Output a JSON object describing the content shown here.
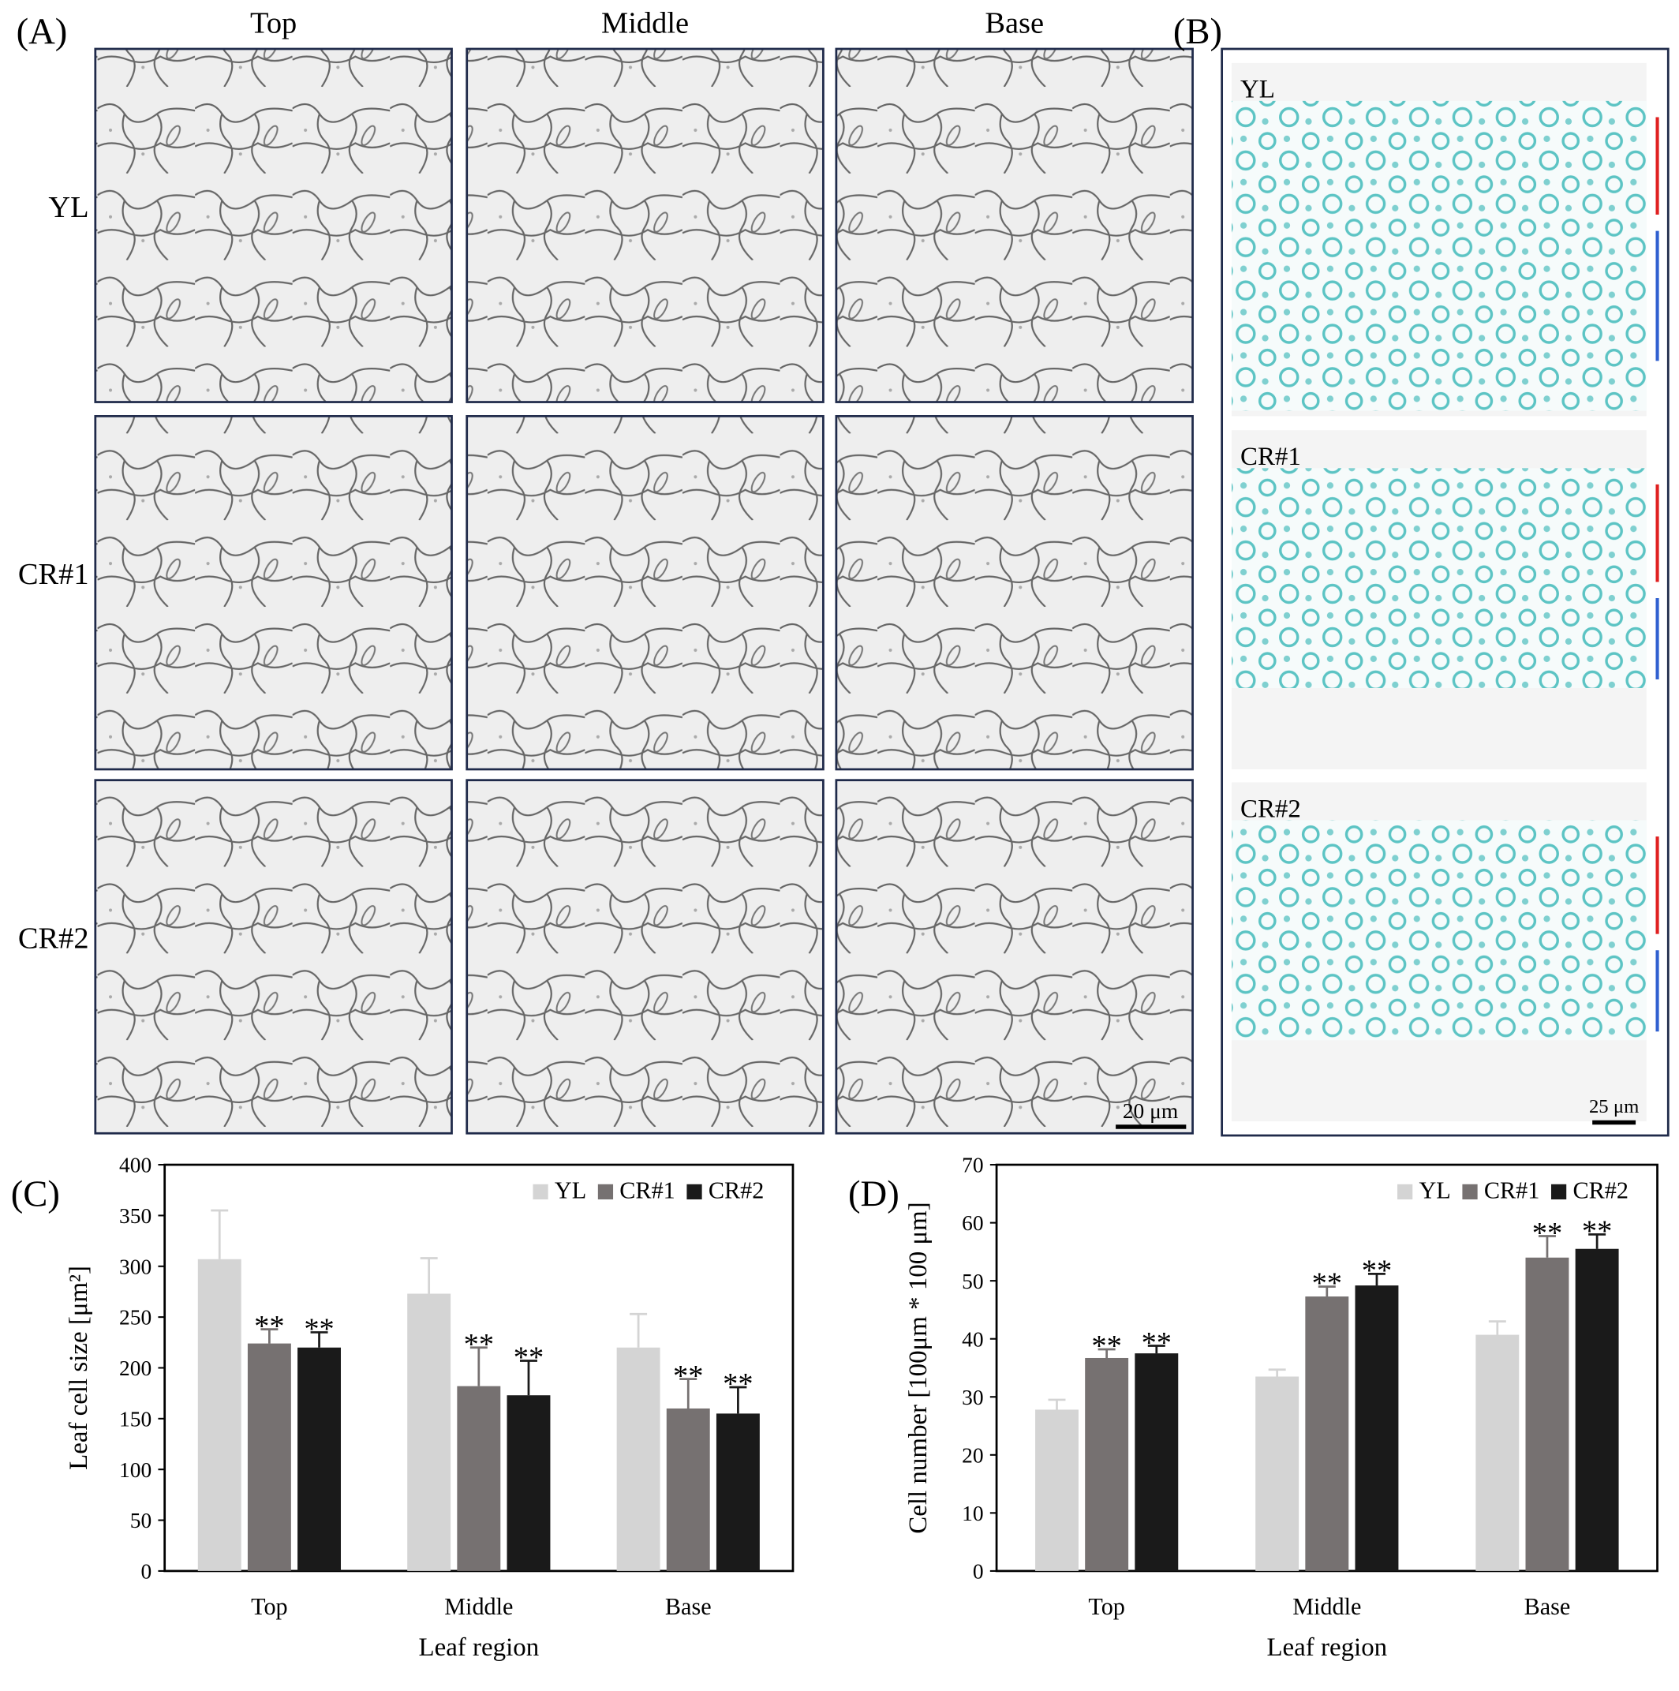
{
  "panel_a": {
    "label": "(A)",
    "columns": [
      "Top",
      "Middle",
      "Base"
    ],
    "rows": [
      "YL",
      "CR#1",
      "CR#2"
    ],
    "scale_bar": "20 μm"
  },
  "panel_b": {
    "label": "(B)",
    "rows": [
      "YL",
      "CR#1",
      "CR#2"
    ],
    "scale_bar": "25 μm"
  },
  "chart_data": [
    {
      "type": "bar",
      "panel_label": "(C)",
      "categories": [
        "Top",
        "Middle",
        "Base"
      ],
      "series": [
        {
          "name": "YL",
          "color": "#d4d4d4",
          "values": [
            307,
            273,
            220
          ],
          "errors": [
            48,
            35,
            33
          ]
        },
        {
          "name": "CR#1",
          "color": "#767171",
          "values": [
            224,
            182,
            160
          ],
          "errors": [
            14,
            38,
            29
          ],
          "significance": [
            "**",
            "**",
            "**"
          ]
        },
        {
          "name": "CR#2",
          "color": "#1a1a1a",
          "values": [
            220,
            173,
            155
          ],
          "errors": [
            15,
            34,
            26
          ],
          "significance": [
            "**",
            "**",
            "**"
          ]
        }
      ],
      "ylim": [
        0,
        400
      ],
      "yticks": [
        0,
        50,
        100,
        150,
        200,
        250,
        300,
        350,
        400
      ],
      "y_label": "Leaf cell size [μm²]",
      "x_label": "Leaf region",
      "legend": "upper right"
    },
    {
      "type": "bar",
      "panel_label": "(D)",
      "categories": [
        "Top",
        "Middle",
        "Base"
      ],
      "series": [
        {
          "name": "YL",
          "color": "#d4d4d4",
          "values": [
            27.8,
            33.5,
            40.7
          ],
          "errors": [
            1.7,
            1.2,
            2.3
          ]
        },
        {
          "name": "CR#1",
          "color": "#767171",
          "values": [
            36.7,
            47.3,
            54
          ],
          "errors": [
            1.5,
            1.7,
            3.7
          ],
          "significance": [
            "**",
            "**",
            "**"
          ]
        },
        {
          "name": "CR#2",
          "color": "#1a1a1a",
          "values": [
            37.5,
            49.2,
            55.5
          ],
          "errors": [
            1.3,
            2,
            2.5
          ],
          "significance": [
            "**",
            "**",
            "**"
          ]
        }
      ],
      "ylim": [
        0,
        70
      ],
      "yticks": [
        0,
        10,
        20,
        30,
        40,
        50,
        60,
        70
      ],
      "y_label": "Cell number [100μm * 100 μm]",
      "x_label": "Leaf region",
      "legend": "upper right"
    }
  ]
}
